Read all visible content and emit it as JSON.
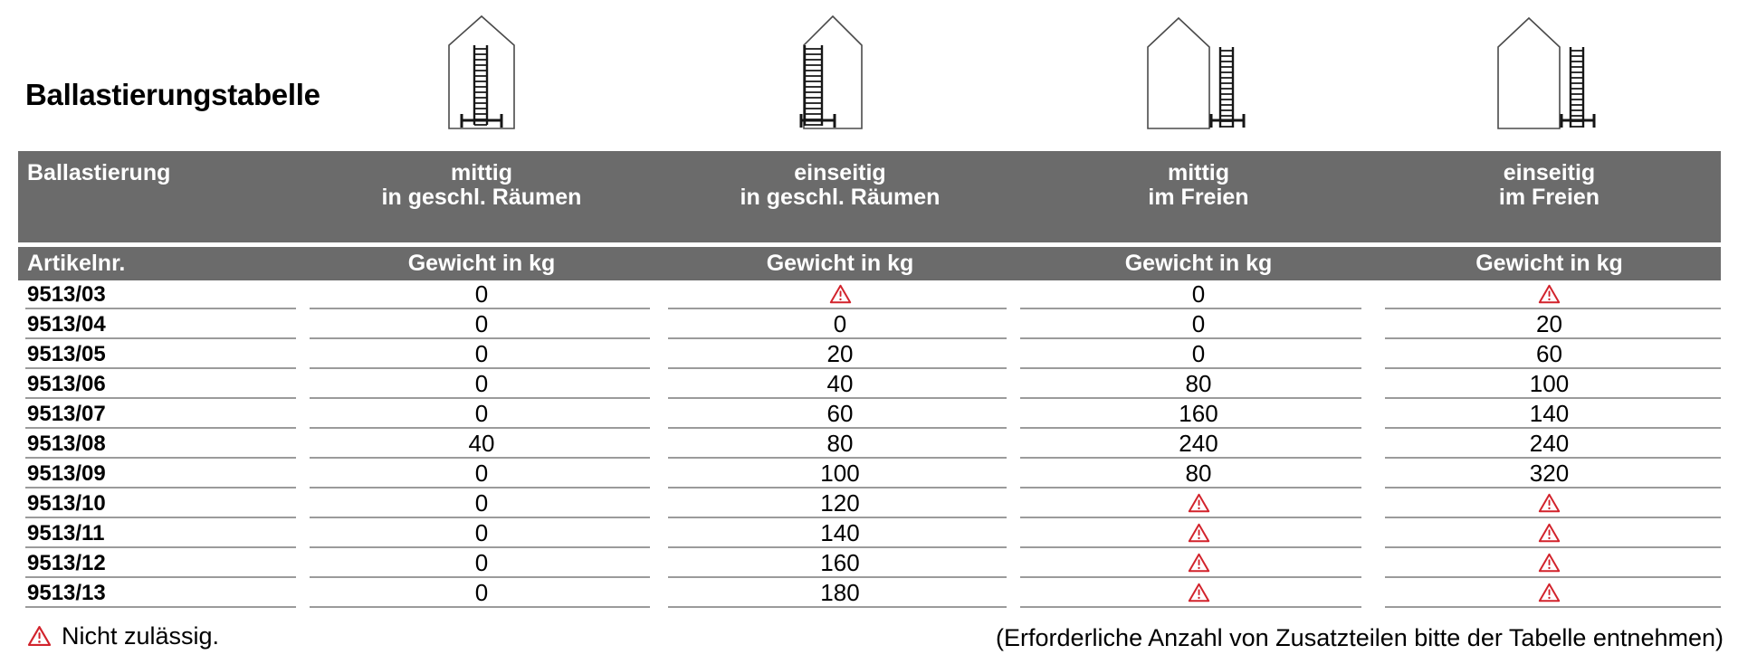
{
  "title": "Ballastierungstabelle",
  "table": {
    "header": {
      "ballastierung_label": "Ballastierung",
      "artikelnr_label": "Artikelnr.",
      "weight_label": "Gewicht in kg",
      "columns": [
        {
          "line1": "mittig",
          "line2": "in geschl. Räumen"
        },
        {
          "line1": "einseitig",
          "line2": "in geschl. Räumen"
        },
        {
          "line1": "mittig",
          "line2": "im Freien"
        },
        {
          "line1": "einseitig",
          "line2": "im Freien"
        }
      ]
    },
    "rows": [
      {
        "article": "9513/03",
        "values": [
          "0",
          "warn",
          "0",
          "warn"
        ]
      },
      {
        "article": "9513/04",
        "values": [
          "0",
          "0",
          "0",
          "20"
        ]
      },
      {
        "article": "9513/05",
        "values": [
          "0",
          "20",
          "0",
          "60"
        ]
      },
      {
        "article": "9513/06",
        "values": [
          "0",
          "40",
          "80",
          "100"
        ]
      },
      {
        "article": "9513/07",
        "values": [
          "0",
          "60",
          "160",
          "140"
        ]
      },
      {
        "article": "9513/08",
        "values": [
          "40",
          "80",
          "240",
          "240"
        ]
      },
      {
        "article": "9513/09",
        "values": [
          "0",
          "100",
          "80",
          "320"
        ]
      },
      {
        "article": "9513/10",
        "values": [
          "0",
          "120",
          "warn",
          "warn"
        ]
      },
      {
        "article": "9513/11",
        "values": [
          "0",
          "140",
          "warn",
          "warn"
        ]
      },
      {
        "article": "9513/12",
        "values": [
          "0",
          "160",
          "warn",
          "warn"
        ]
      },
      {
        "article": "9513/13",
        "values": [
          "0",
          "180",
          "warn",
          "warn"
        ]
      }
    ],
    "warn_marker": "warn"
  },
  "footer": {
    "left_note": "Nicht zulässig.",
    "right_note": "(Erforderliche Anzahl von Zusatzteilen bitte der Tabelle entnehmen)"
  },
  "icons": {
    "warning": "warning-triangle",
    "pictograms": [
      "ladder-centered-inside-building",
      "ladder-at-wall-inside-building",
      "ladder-outside-building-mittig",
      "ladder-outside-building-einseitig"
    ]
  },
  "colors": {
    "header_gray": "#6b6b6b",
    "warning_red": "#d2232c",
    "line_gray": "#9b9b9b"
  }
}
